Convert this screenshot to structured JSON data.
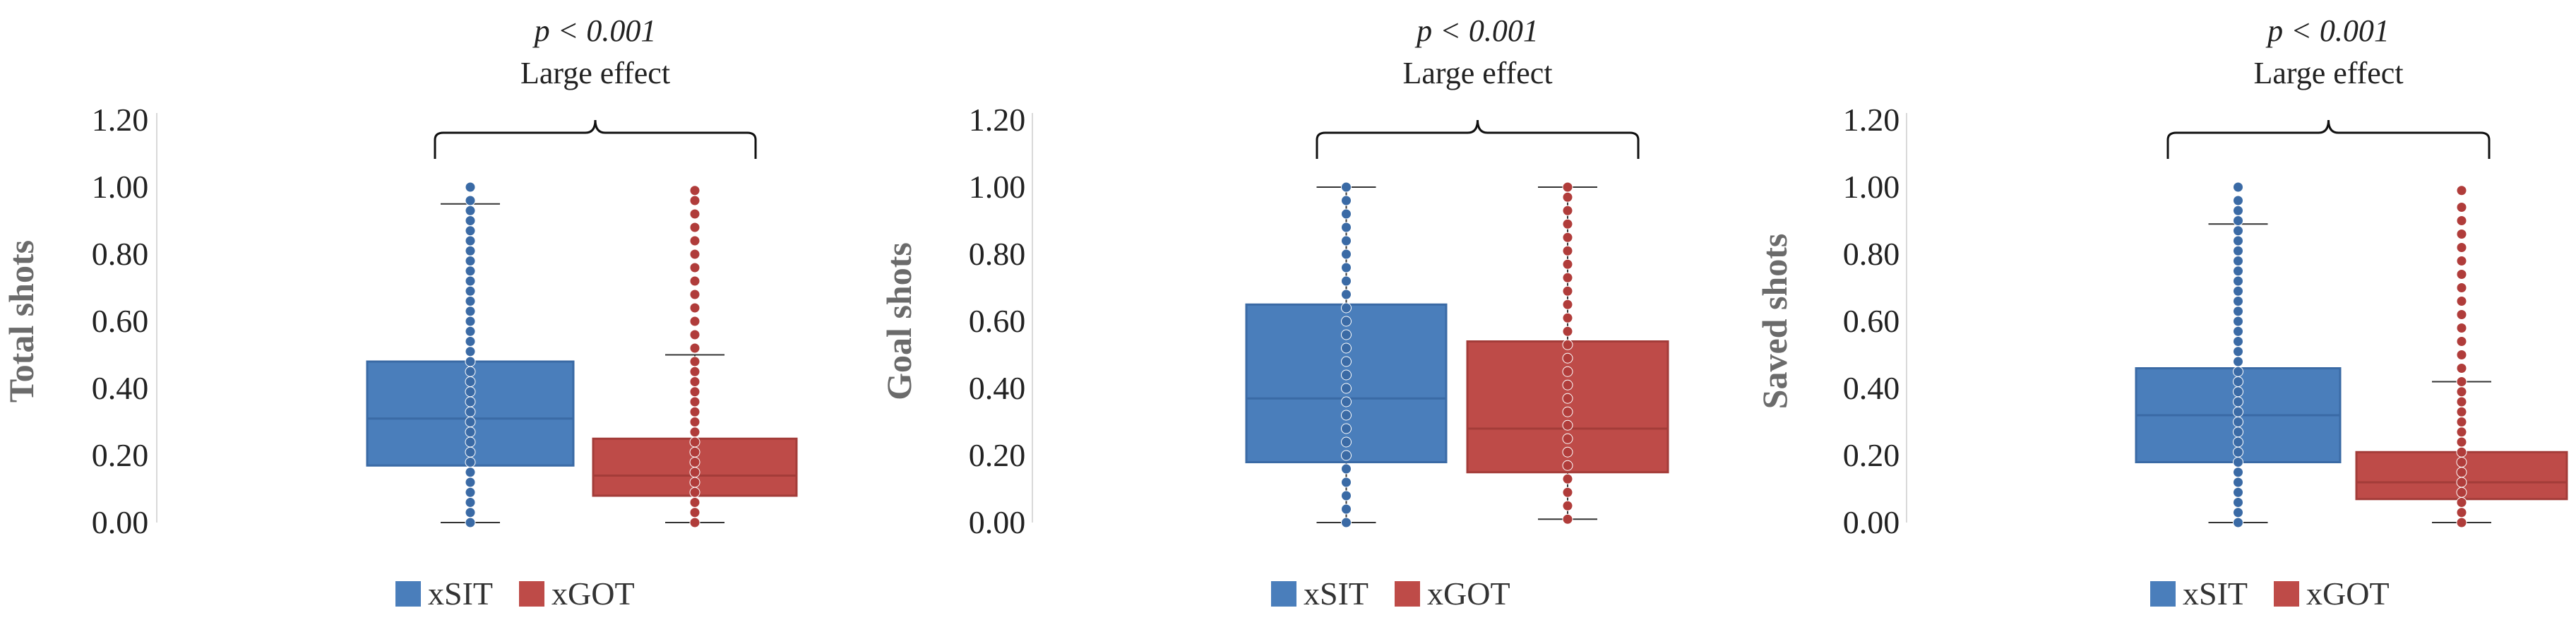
{
  "chart_data": [
    {
      "type": "box",
      "ylabel": "Total shots",
      "ylim": [
        0,
        1.2
      ],
      "yticks": [
        "0.00",
        "0.20",
        "0.40",
        "0.60",
        "0.80",
        "1.00",
        "1.20"
      ],
      "significance": {
        "p": "p < 0.001",
        "effect": "Large effect"
      },
      "series": [
        {
          "name": "xSIT",
          "q1": 0.17,
          "median": 0.31,
          "q3": 0.48,
          "whisker_low": 0.0,
          "whisker_high": 0.95,
          "points": [
            0.0,
            0.03,
            0.06,
            0.09,
            0.12,
            0.15,
            0.18,
            0.21,
            0.24,
            0.27,
            0.3,
            0.33,
            0.36,
            0.39,
            0.42,
            0.45,
            0.48,
            0.51,
            0.54,
            0.57,
            0.6,
            0.63,
            0.66,
            0.69,
            0.72,
            0.75,
            0.78,
            0.81,
            0.84,
            0.87,
            0.9,
            0.93,
            0.96,
            1.0
          ]
        },
        {
          "name": "xGOT",
          "q1": 0.08,
          "median": 0.14,
          "q3": 0.25,
          "whisker_low": 0.0,
          "whisker_high": 0.5,
          "points": [
            0.0,
            0.03,
            0.06,
            0.09,
            0.12,
            0.15,
            0.18,
            0.21,
            0.24,
            0.27,
            0.3,
            0.33,
            0.36,
            0.39,
            0.42,
            0.45,
            0.48,
            0.52,
            0.56,
            0.6,
            0.64,
            0.68,
            0.72,
            0.76,
            0.8,
            0.84,
            0.88,
            0.92,
            0.96,
            0.99
          ]
        }
      ]
    },
    {
      "type": "box",
      "ylabel": "Goal shots",
      "ylim": [
        0,
        1.2
      ],
      "yticks": [
        "0.00",
        "0.20",
        "0.40",
        "0.60",
        "0.80",
        "1.00",
        "1.20"
      ],
      "significance": {
        "p": "p < 0.001",
        "effect": "Large effect"
      },
      "series": [
        {
          "name": "xSIT",
          "q1": 0.18,
          "median": 0.37,
          "q3": 0.65,
          "whisker_low": 0.0,
          "whisker_high": 1.0,
          "points": [
            0.0,
            0.04,
            0.08,
            0.12,
            0.16,
            0.2,
            0.24,
            0.28,
            0.32,
            0.36,
            0.4,
            0.44,
            0.48,
            0.52,
            0.56,
            0.6,
            0.64,
            0.68,
            0.72,
            0.76,
            0.8,
            0.84,
            0.88,
            0.92,
            0.96,
            1.0
          ]
        },
        {
          "name": "xGOT",
          "q1": 0.15,
          "median": 0.28,
          "q3": 0.54,
          "whisker_low": 0.01,
          "whisker_high": 1.0,
          "points": [
            0.01,
            0.05,
            0.09,
            0.13,
            0.17,
            0.21,
            0.25,
            0.29,
            0.33,
            0.37,
            0.41,
            0.45,
            0.49,
            0.53,
            0.57,
            0.61,
            0.65,
            0.69,
            0.73,
            0.77,
            0.81,
            0.85,
            0.89,
            0.93,
            0.97,
            1.0
          ]
        }
      ]
    },
    {
      "type": "box",
      "ylabel": "Saved shots",
      "ylim": [
        0,
        1.2
      ],
      "yticks": [
        "0.00",
        "0.20",
        "0.40",
        "0.60",
        "0.80",
        "1.00",
        "1.20"
      ],
      "significance": {
        "p": "p < 0.001",
        "effect": "Large effect"
      },
      "series": [
        {
          "name": "xSIT",
          "q1": 0.18,
          "median": 0.32,
          "q3": 0.46,
          "whisker_low": 0.0,
          "whisker_high": 0.89,
          "points": [
            0.0,
            0.03,
            0.06,
            0.09,
            0.12,
            0.15,
            0.18,
            0.21,
            0.24,
            0.27,
            0.3,
            0.33,
            0.36,
            0.39,
            0.42,
            0.45,
            0.48,
            0.51,
            0.54,
            0.57,
            0.6,
            0.63,
            0.66,
            0.69,
            0.72,
            0.75,
            0.78,
            0.81,
            0.84,
            0.87,
            0.9,
            0.93,
            0.96,
            1.0
          ]
        },
        {
          "name": "xGOT",
          "q1": 0.07,
          "median": 0.12,
          "q3": 0.21,
          "whisker_low": 0.0,
          "whisker_high": 0.42,
          "points": [
            0.0,
            0.03,
            0.06,
            0.09,
            0.12,
            0.15,
            0.18,
            0.21,
            0.24,
            0.27,
            0.3,
            0.33,
            0.36,
            0.39,
            0.42,
            0.46,
            0.5,
            0.54,
            0.58,
            0.62,
            0.66,
            0.7,
            0.74,
            0.78,
            0.82,
            0.86,
            0.9,
            0.94,
            0.99
          ]
        }
      ]
    }
  ],
  "legend": [
    {
      "name": "xSIT",
      "color": "#4a7ebb"
    },
    {
      "name": "xGOT",
      "color": "#be4b48"
    }
  ],
  "colors": {
    "xSIT_fill": "#4a7ebb",
    "xSIT_edge": "#3a6aa5",
    "xGOT_fill": "#be4b48",
    "xGOT_edge": "#a33c39",
    "whisker": "#333333"
  }
}
